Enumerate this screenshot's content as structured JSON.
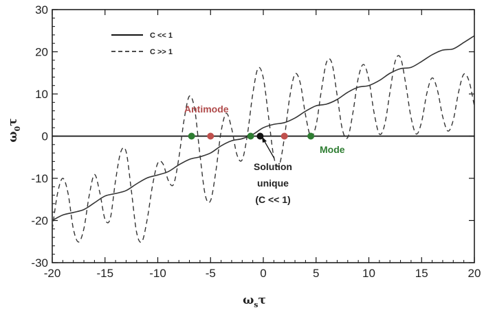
{
  "chart_data": {
    "type": "line",
    "title": "",
    "xlabel_main": "ω",
    "xlabel_sub": "s",
    "xlabel_tail": "τ",
    "ylabel_main": "ω",
    "ylabel_sub": "0",
    "ylabel_tail": "τ",
    "xlim": [
      -20,
      20
    ],
    "ylim": [
      -30,
      30
    ],
    "x_ticks": [
      -20,
      -15,
      -10,
      -5,
      0,
      5,
      10,
      15,
      20
    ],
    "x_tick_labels": [
      "-20",
      "-15",
      "-10",
      "-5",
      "0",
      "5",
      "10",
      "15",
      "20"
    ],
    "y_ticks": [
      -30,
      -20,
      -10,
      0,
      10,
      20,
      30
    ],
    "y_tick_labels": [
      "-30",
      "-20",
      "-10",
      "0",
      "10",
      "20",
      "30"
    ],
    "grid": false,
    "legend_position": "top-left",
    "series": [
      {
        "name": "C << 1",
        "style": "solid",
        "x": [
          -20,
          -19,
          -18,
          -17,
          -16,
          -15,
          -14,
          -13,
          -12,
          -11,
          -10,
          -9,
          -8,
          -7,
          -6,
          -5,
          -4,
          -3,
          -2,
          -1,
          0,
          1,
          2,
          3,
          4,
          5,
          6,
          7,
          8,
          9,
          10,
          11,
          12,
          13,
          14,
          15,
          16,
          17,
          18,
          19,
          20
        ],
        "y": [
          -20,
          -18.7,
          -18.1,
          -17.4,
          -15.8,
          -14.2,
          -13.6,
          -12.9,
          -11.3,
          -9.9,
          -9.2,
          -8.4,
          -6.8,
          -5.5,
          -4.9,
          -4.0,
          -2.3,
          -1.1,
          -0.6,
          0.4,
          2.0,
          2.8,
          3.2,
          4.3,
          5.9,
          7.2,
          7.6,
          8.7,
          10.4,
          11.6,
          12.0,
          13.2,
          14.9,
          16.0,
          16.3,
          17.7,
          19.3,
          20.4,
          20.7,
          22.2,
          23.8
        ]
      },
      {
        "name": "C >> 1",
        "style": "dashed",
        "x": [
          -20,
          -19.5,
          -19,
          -18.5,
          -18,
          -17.5,
          -17,
          -16.5,
          -16,
          -15.5,
          -15,
          -14.5,
          -14,
          -13.5,
          -13,
          -12.5,
          -12,
          -11.5,
          -11,
          -10.5,
          -10,
          -9.5,
          -9,
          -8.5,
          -8,
          -7.5,
          -7,
          -6.5,
          -6,
          -5.5,
          -5,
          -4.5,
          -4,
          -3.5,
          -3,
          -2.5,
          -2,
          -1.5,
          -1,
          -0.5,
          0,
          0.5,
          1,
          1.5,
          2,
          2.5,
          3,
          3.5,
          4,
          4.5,
          5,
          5.5,
          6,
          6.5,
          7,
          7.5,
          8,
          8.5,
          9,
          9.5,
          10,
          10.5,
          11,
          11.5,
          12,
          12.5,
          13,
          13.5,
          14,
          14.5,
          15,
          15.5,
          16,
          16.5,
          17,
          17.5,
          18,
          18.5,
          19,
          19.5,
          20
        ],
        "y": [
          -22.1,
          -13.6,
          -10.0,
          -13.6,
          -22.0,
          -25.1,
          -21.9,
          -14.1,
          -9.1,
          -13.3,
          -19.7,
          -19.5,
          -10.5,
          -3.7,
          -3.7,
          -13.0,
          -22.9,
          -25.0,
          -19.7,
          -11.7,
          -6.4,
          -6.6,
          -10.5,
          -11.4,
          -5.1,
          4.0,
          9.5,
          6.3,
          -4.5,
          -14.0,
          -15.3,
          -8.4,
          1.1,
          5.4,
          1.8,
          -4.4,
          -5.6,
          0.5,
          10.0,
          16.1,
          13.8,
          4.5,
          -5.0,
          -6.9,
          -0.3,
          9.2,
          14.7,
          12.6,
          5.0,
          -0.1,
          2.6,
          10.8,
          17.6,
          17.3,
          9.6,
          1.5,
          -0.3,
          5.7,
          13.8,
          17.0,
          13.4,
          5.5,
          0.5,
          2.7,
          10.4,
          17.8,
          18.6,
          12.3,
          4.4,
          0.5,
          3.4,
          10.2,
          13.8,
          10.9,
          4.6,
          1.2,
          3.8,
          10.4,
          14.7,
          13.0,
          7.1
        ]
      }
    ],
    "markers": [
      {
        "x": -6.8,
        "y": 0,
        "kind": "mode",
        "color": "#2e7d32"
      },
      {
        "x": -5.0,
        "y": 0,
        "kind": "antimode",
        "color": "#c0504d"
      },
      {
        "x": -1.2,
        "y": 0,
        "kind": "mode",
        "color": "#2e7d32"
      },
      {
        "x": -0.3,
        "y": 0,
        "kind": "solution",
        "color": "#111111"
      },
      {
        "x": 2.0,
        "y": 0,
        "kind": "antimode",
        "color": "#c0504d"
      },
      {
        "x": 4.5,
        "y": 0,
        "kind": "mode",
        "color": "#2e7d32"
      }
    ],
    "annotations": {
      "antimode": {
        "text": "Antimode",
        "color": "#b04a4a"
      },
      "mode": {
        "text": "Mode",
        "color": "#2e7d32"
      },
      "solution": {
        "lines": [
          "Solution",
          "unique",
          "(C << 1)"
        ],
        "color": "#222222"
      }
    }
  }
}
